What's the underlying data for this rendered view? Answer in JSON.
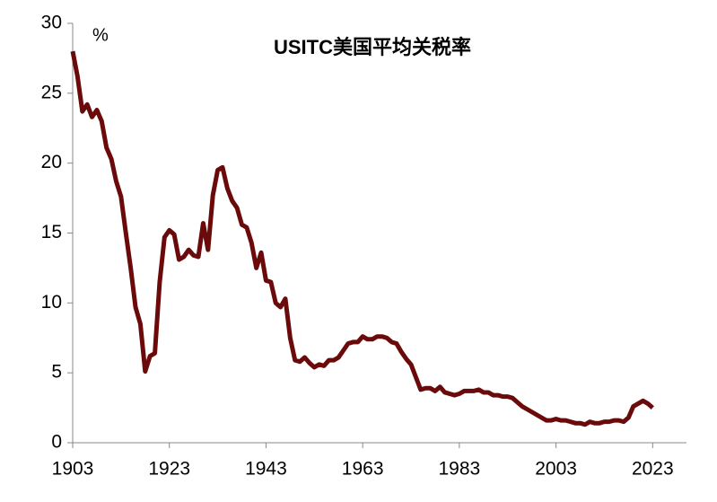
{
  "chart_data": {
    "type": "line",
    "title": "USITC美国平均关税率",
    "y_unit": "%",
    "x": [
      1903,
      1904,
      1905,
      1906,
      1907,
      1908,
      1909,
      1910,
      1911,
      1912,
      1913,
      1914,
      1915,
      1916,
      1917,
      1918,
      1919,
      1920,
      1921,
      1922,
      1923,
      1924,
      1925,
      1926,
      1927,
      1928,
      1929,
      1930,
      1931,
      1932,
      1933,
      1934,
      1935,
      1936,
      1937,
      1938,
      1939,
      1940,
      1941,
      1942,
      1943,
      1944,
      1945,
      1946,
      1947,
      1948,
      1949,
      1950,
      1951,
      1952,
      1953,
      1954,
      1955,
      1956,
      1957,
      1958,
      1959,
      1960,
      1961,
      1962,
      1963,
      1964,
      1965,
      1966,
      1967,
      1968,
      1969,
      1970,
      1971,
      1972,
      1973,
      1974,
      1975,
      1976,
      1977,
      1978,
      1979,
      1980,
      1981,
      1982,
      1983,
      1984,
      1985,
      1986,
      1987,
      1988,
      1989,
      1990,
      1991,
      1992,
      1993,
      1994,
      1995,
      1996,
      1997,
      1998,
      1999,
      2000,
      2001,
      2002,
      2003,
      2004,
      2005,
      2006,
      2007,
      2008,
      2009,
      2010,
      2011,
      2012,
      2013,
      2014,
      2015,
      2016,
      2017,
      2018,
      2019,
      2020,
      2021,
      2022,
      2023
    ],
    "series": [
      {
        "name": "USITC美国平均关税率",
        "color": "#6b0a0a",
        "values": [
          28,
          26.2,
          23.7,
          24.2,
          23.3,
          23.8,
          23.0,
          21.1,
          20.3,
          18.7,
          17.6,
          15.0,
          12.5,
          9.7,
          8.5,
          5.1,
          6.2,
          6.4,
          11.5,
          14.7,
          15.2,
          14.9,
          13.1,
          13.3,
          13.8,
          13.4,
          13.3,
          15.7,
          13.8,
          17.7,
          19.5,
          19.7,
          18.2,
          17.3,
          16.8,
          15.6,
          15.4,
          14.3,
          12.5,
          13.6,
          11.6,
          11.5,
          10.0,
          9.7,
          10.3,
          7.5,
          5.9,
          5.8,
          6.1,
          5.7,
          5.4,
          5.6,
          5.5,
          5.9,
          5.9,
          6.1,
          6.6,
          7.1,
          7.2,
          7.2,
          7.6,
          7.4,
          7.4,
          7.6,
          7.6,
          7.5,
          7.2,
          7.1,
          6.5,
          6.0,
          5.6,
          4.7,
          3.8,
          3.9,
          3.9,
          3.7,
          4.0,
          3.6,
          3.5,
          3.4,
          3.5,
          3.7,
          3.7,
          3.7,
          3.8,
          3.6,
          3.6,
          3.4,
          3.4,
          3.3,
          3.3,
          3.2,
          2.9,
          2.6,
          2.4,
          2.2,
          2.0,
          1.8,
          1.6,
          1.6,
          1.7,
          1.6,
          1.6,
          1.5,
          1.4,
          1.4,
          1.3,
          1.5,
          1.4,
          1.4,
          1.5,
          1.5,
          1.6,
          1.6,
          1.5,
          1.8,
          2.6,
          2.8,
          3.0,
          2.8,
          2.5
        ]
      }
    ],
    "xlim": [
      1903,
      2030
    ],
    "xticks": [
      1903,
      1923,
      1943,
      1963,
      1983,
      2003,
      2023
    ],
    "ylim": [
      0,
      30
    ],
    "yticks": [
      0,
      5,
      10,
      15,
      20,
      25,
      30
    ],
    "grid": false
  }
}
